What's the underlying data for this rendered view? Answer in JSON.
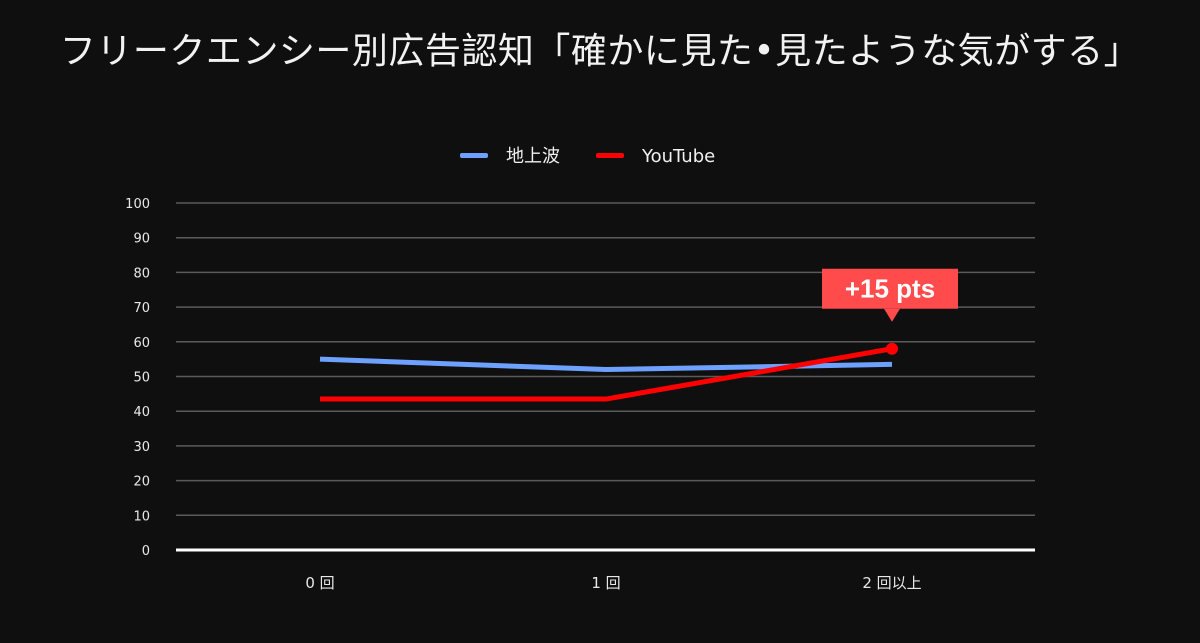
{
  "title": "フリークエンシー別広告認知「確かに見た•見たような気がする」",
  "chart_data": {
    "type": "line",
    "title": "フリークエンシー別広告認知「確かに見た•見たような気がする」",
    "categories": [
      "0 回",
      "1 回",
      "2 回以上"
    ],
    "series": [
      {
        "name": "地上波",
        "color": "#6ea1ff",
        "values": [
          55,
          52,
          53.5
        ]
      },
      {
        "name": "YouTube",
        "color": "#ff0000",
        "values": [
          43.5,
          43.5,
          58
        ]
      }
    ],
    "ylim": [
      0,
      100
    ],
    "yticks": [
      0,
      10,
      20,
      30,
      40,
      50,
      60,
      70,
      80,
      90,
      100
    ],
    "grid": true,
    "legend_position": "top",
    "annotation": {
      "text": "+15 pts",
      "series": "YouTube",
      "category": "2 回以上",
      "background": "#ff4b4b"
    }
  }
}
